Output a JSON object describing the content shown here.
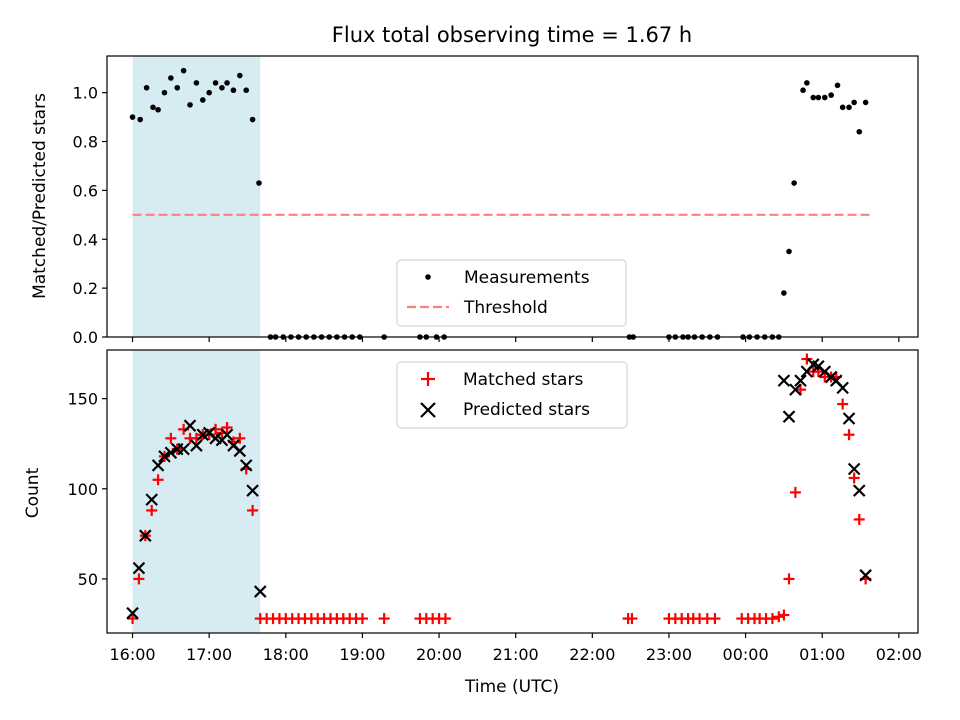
{
  "title": "Flux total observing time = 1.67 h",
  "xlabel": "Time (UTC)",
  "x_ticks": [
    "16:00",
    "17:00",
    "18:00",
    "19:00",
    "20:00",
    "21:00",
    "22:00",
    "23:00",
    "00:00",
    "01:00",
    "02:00"
  ],
  "colors": {
    "measurements": "#000000",
    "threshold": "#ff7f7f",
    "matched": "#ff0000",
    "predicted": "#000000",
    "shade": "#add8e6"
  },
  "chart_data": [
    {
      "type": "scatter",
      "ylabel": "Matched/Predicted stars",
      "ylim": [
        0,
        1.15
      ],
      "y_ticks": [
        "0.0",
        "0.2",
        "0.4",
        "0.6",
        "0.8",
        "1.0"
      ],
      "y_tick_values": [
        0,
        0.2,
        0.4,
        0.6,
        0.8,
        1.0
      ],
      "shaded_region": [
        "16:00",
        "17:40"
      ],
      "threshold": 0.5,
      "threshold_range": [
        "16:00",
        "01:40"
      ],
      "legend": {
        "position": "lower center",
        "entries": [
          "Measurements",
          "Threshold"
        ]
      },
      "series": [
        {
          "name": "Measurements",
          "marker": "dot",
          "points": [
            [
              "16:00",
              0.9
            ],
            [
              "16:06",
              0.89
            ],
            [
              "16:11",
              1.02
            ],
            [
              "16:16",
              0.94
            ],
            [
              "16:20",
              0.93
            ],
            [
              "16:25",
              1.0
            ],
            [
              "16:30",
              1.06
            ],
            [
              "16:35",
              1.02
            ],
            [
              "16:40",
              1.09
            ],
            [
              "16:45",
              0.95
            ],
            [
              "16:50",
              1.04
            ],
            [
              "16:55",
              0.97
            ],
            [
              "17:00",
              1.0
            ],
            [
              "17:05",
              1.04
            ],
            [
              "17:10",
              1.02
            ],
            [
              "17:14",
              1.04
            ],
            [
              "17:19",
              1.01
            ],
            [
              "17:24",
              1.07
            ],
            [
              "17:29",
              1.01
            ],
            [
              "17:34",
              0.89
            ],
            [
              "17:39",
              0.63
            ],
            [
              "17:48",
              0
            ],
            [
              "17:52",
              0
            ],
            [
              "17:58",
              0
            ],
            [
              "18:04",
              0
            ],
            [
              "18:10",
              0
            ],
            [
              "18:16",
              0
            ],
            [
              "18:22",
              0
            ],
            [
              "18:28",
              0
            ],
            [
              "18:34",
              0
            ],
            [
              "18:40",
              0
            ],
            [
              "18:46",
              0
            ],
            [
              "18:52",
              0
            ],
            [
              "18:58",
              0
            ],
            [
              "19:17",
              0
            ],
            [
              "19:45",
              0
            ],
            [
              "19:50",
              0
            ],
            [
              "19:58",
              0
            ],
            [
              "20:04",
              0
            ],
            [
              "22:29",
              0
            ],
            [
              "22:32",
              0
            ],
            [
              "23:00",
              0
            ],
            [
              "23:05",
              0
            ],
            [
              "23:11",
              0
            ],
            [
              "23:15",
              0
            ],
            [
              "23:20",
              0
            ],
            [
              "23:26",
              0
            ],
            [
              "23:32",
              0
            ],
            [
              "23:38",
              0
            ],
            [
              "23:58",
              0
            ],
            [
              "00:03",
              0
            ],
            [
              "00:09",
              0
            ],
            [
              "00:15",
              0
            ],
            [
              "00:21",
              0
            ],
            [
              "00:26",
              0
            ],
            [
              "00:30",
              0.18
            ],
            [
              "00:34",
              0.35
            ],
            [
              "00:38",
              0.63
            ],
            [
              "00:45",
              1.01
            ],
            [
              "00:48",
              1.04
            ],
            [
              "00:53",
              0.98
            ],
            [
              "00:57",
              0.98
            ],
            [
              "01:02",
              0.98
            ],
            [
              "01:07",
              0.99
            ],
            [
              "01:12",
              1.03
            ],
            [
              "01:16",
              0.94
            ],
            [
              "01:21",
              0.94
            ],
            [
              "01:25",
              0.96
            ],
            [
              "01:29",
              0.84
            ],
            [
              "01:34",
              0.96
            ]
          ]
        },
        {
          "name": "Threshold",
          "style": "dashed",
          "value": 0.5
        }
      ]
    },
    {
      "type": "scatter",
      "ylabel": "Count",
      "ylim": [
        20,
        177
      ],
      "y_ticks": [
        "50",
        "100",
        "150"
      ],
      "y_tick_values": [
        50,
        100,
        150
      ],
      "shaded_region": [
        "16:00",
        "17:40"
      ],
      "legend": {
        "position": "upper center",
        "entries": [
          "Matched stars",
          "Predicted stars"
        ]
      },
      "series": [
        {
          "name": "Matched stars",
          "marker": "plus",
          "points": [
            [
              "16:00",
              28
            ],
            [
              "16:05",
              50
            ],
            [
              "16:10",
              74
            ],
            [
              "16:15",
              88
            ],
            [
              "16:20",
              105
            ],
            [
              "16:25",
              118
            ],
            [
              "16:30",
              128
            ],
            [
              "16:35",
              122
            ],
            [
              "16:40",
              133
            ],
            [
              "16:45",
              128
            ],
            [
              "16:50",
              128
            ],
            [
              "16:55",
              130
            ],
            [
              "17:00",
              130
            ],
            [
              "17:05",
              133
            ],
            [
              "17:10",
              131
            ],
            [
              "17:14",
              134
            ],
            [
              "17:19",
              126
            ],
            [
              "17:24",
              128
            ],
            [
              "17:29",
              111
            ],
            [
              "17:34",
              88
            ],
            [
              "17:40",
              28
            ],
            [
              "17:45",
              28
            ],
            [
              "17:50",
              28
            ],
            [
              "17:55",
              28
            ],
            [
              "18:00",
              28
            ],
            [
              "18:05",
              28
            ],
            [
              "18:10",
              28
            ],
            [
              "18:15",
              28
            ],
            [
              "18:20",
              28
            ],
            [
              "18:25",
              28
            ],
            [
              "18:30",
              28
            ],
            [
              "18:35",
              28
            ],
            [
              "18:40",
              28
            ],
            [
              "18:45",
              28
            ],
            [
              "18:50",
              28
            ],
            [
              "18:55",
              28
            ],
            [
              "19:00",
              28
            ],
            [
              "19:17",
              28
            ],
            [
              "19:45",
              28
            ],
            [
              "19:50",
              28
            ],
            [
              "19:55",
              28
            ],
            [
              "20:00",
              28
            ],
            [
              "20:05",
              28
            ],
            [
              "22:28",
              28
            ],
            [
              "22:31",
              28
            ],
            [
              "23:00",
              28
            ],
            [
              "23:05",
              28
            ],
            [
              "23:10",
              28
            ],
            [
              "23:15",
              28
            ],
            [
              "23:19",
              28
            ],
            [
              "23:24",
              28
            ],
            [
              "23:30",
              28
            ],
            [
              "23:36",
              28
            ],
            [
              "23:57",
              28
            ],
            [
              "00:02",
              28
            ],
            [
              "00:07",
              28
            ],
            [
              "00:11",
              28
            ],
            [
              "00:16",
              28
            ],
            [
              "00:21",
              28
            ],
            [
              "00:26",
              29
            ],
            [
              "00:30",
              30
            ],
            [
              "00:34",
              50
            ],
            [
              "00:39",
              98
            ],
            [
              "00:43",
              155
            ],
            [
              "00:48",
              172
            ],
            [
              "00:53",
              165
            ],
            [
              "00:57",
              165
            ],
            [
              "01:02",
              162
            ],
            [
              "01:07",
              162
            ],
            [
              "01:11",
              162
            ],
            [
              "01:16",
              147
            ],
            [
              "01:21",
              130
            ],
            [
              "01:25",
              106
            ],
            [
              "01:29",
              83
            ],
            [
              "01:34",
              50
            ]
          ]
        },
        {
          "name": "Predicted stars",
          "marker": "x",
          "points": [
            [
              "16:00",
              31
            ],
            [
              "16:05",
              56
            ],
            [
              "16:10",
              74
            ],
            [
              "16:15",
              94
            ],
            [
              "16:20",
              113
            ],
            [
              "16:25",
              118
            ],
            [
              "16:30",
              120
            ],
            [
              "16:35",
              122
            ],
            [
              "16:40",
              122
            ],
            [
              "16:45",
              135
            ],
            [
              "16:50",
              124
            ],
            [
              "16:55",
              130
            ],
            [
              "17:00",
              131
            ],
            [
              "17:05",
              128
            ],
            [
              "17:10",
              127
            ],
            [
              "17:14",
              130
            ],
            [
              "17:19",
              124
            ],
            [
              "17:24",
              121
            ],
            [
              "17:29",
              113
            ],
            [
              "17:34",
              99
            ],
            [
              "17:40",
              43
            ],
            [
              "00:30",
              160
            ],
            [
              "00:34",
              140
            ],
            [
              "00:39",
              155
            ],
            [
              "00:43",
              160
            ],
            [
              "00:48",
              165
            ],
            [
              "00:53",
              169
            ],
            [
              "00:57",
              168
            ],
            [
              "01:02",
              165
            ],
            [
              "01:07",
              162
            ],
            [
              "01:11",
              160
            ],
            [
              "01:16",
              156
            ],
            [
              "01:21",
              139
            ],
            [
              "01:25",
              111
            ],
            [
              "01:29",
              99
            ],
            [
              "01:34",
              52
            ]
          ]
        }
      ]
    }
  ]
}
